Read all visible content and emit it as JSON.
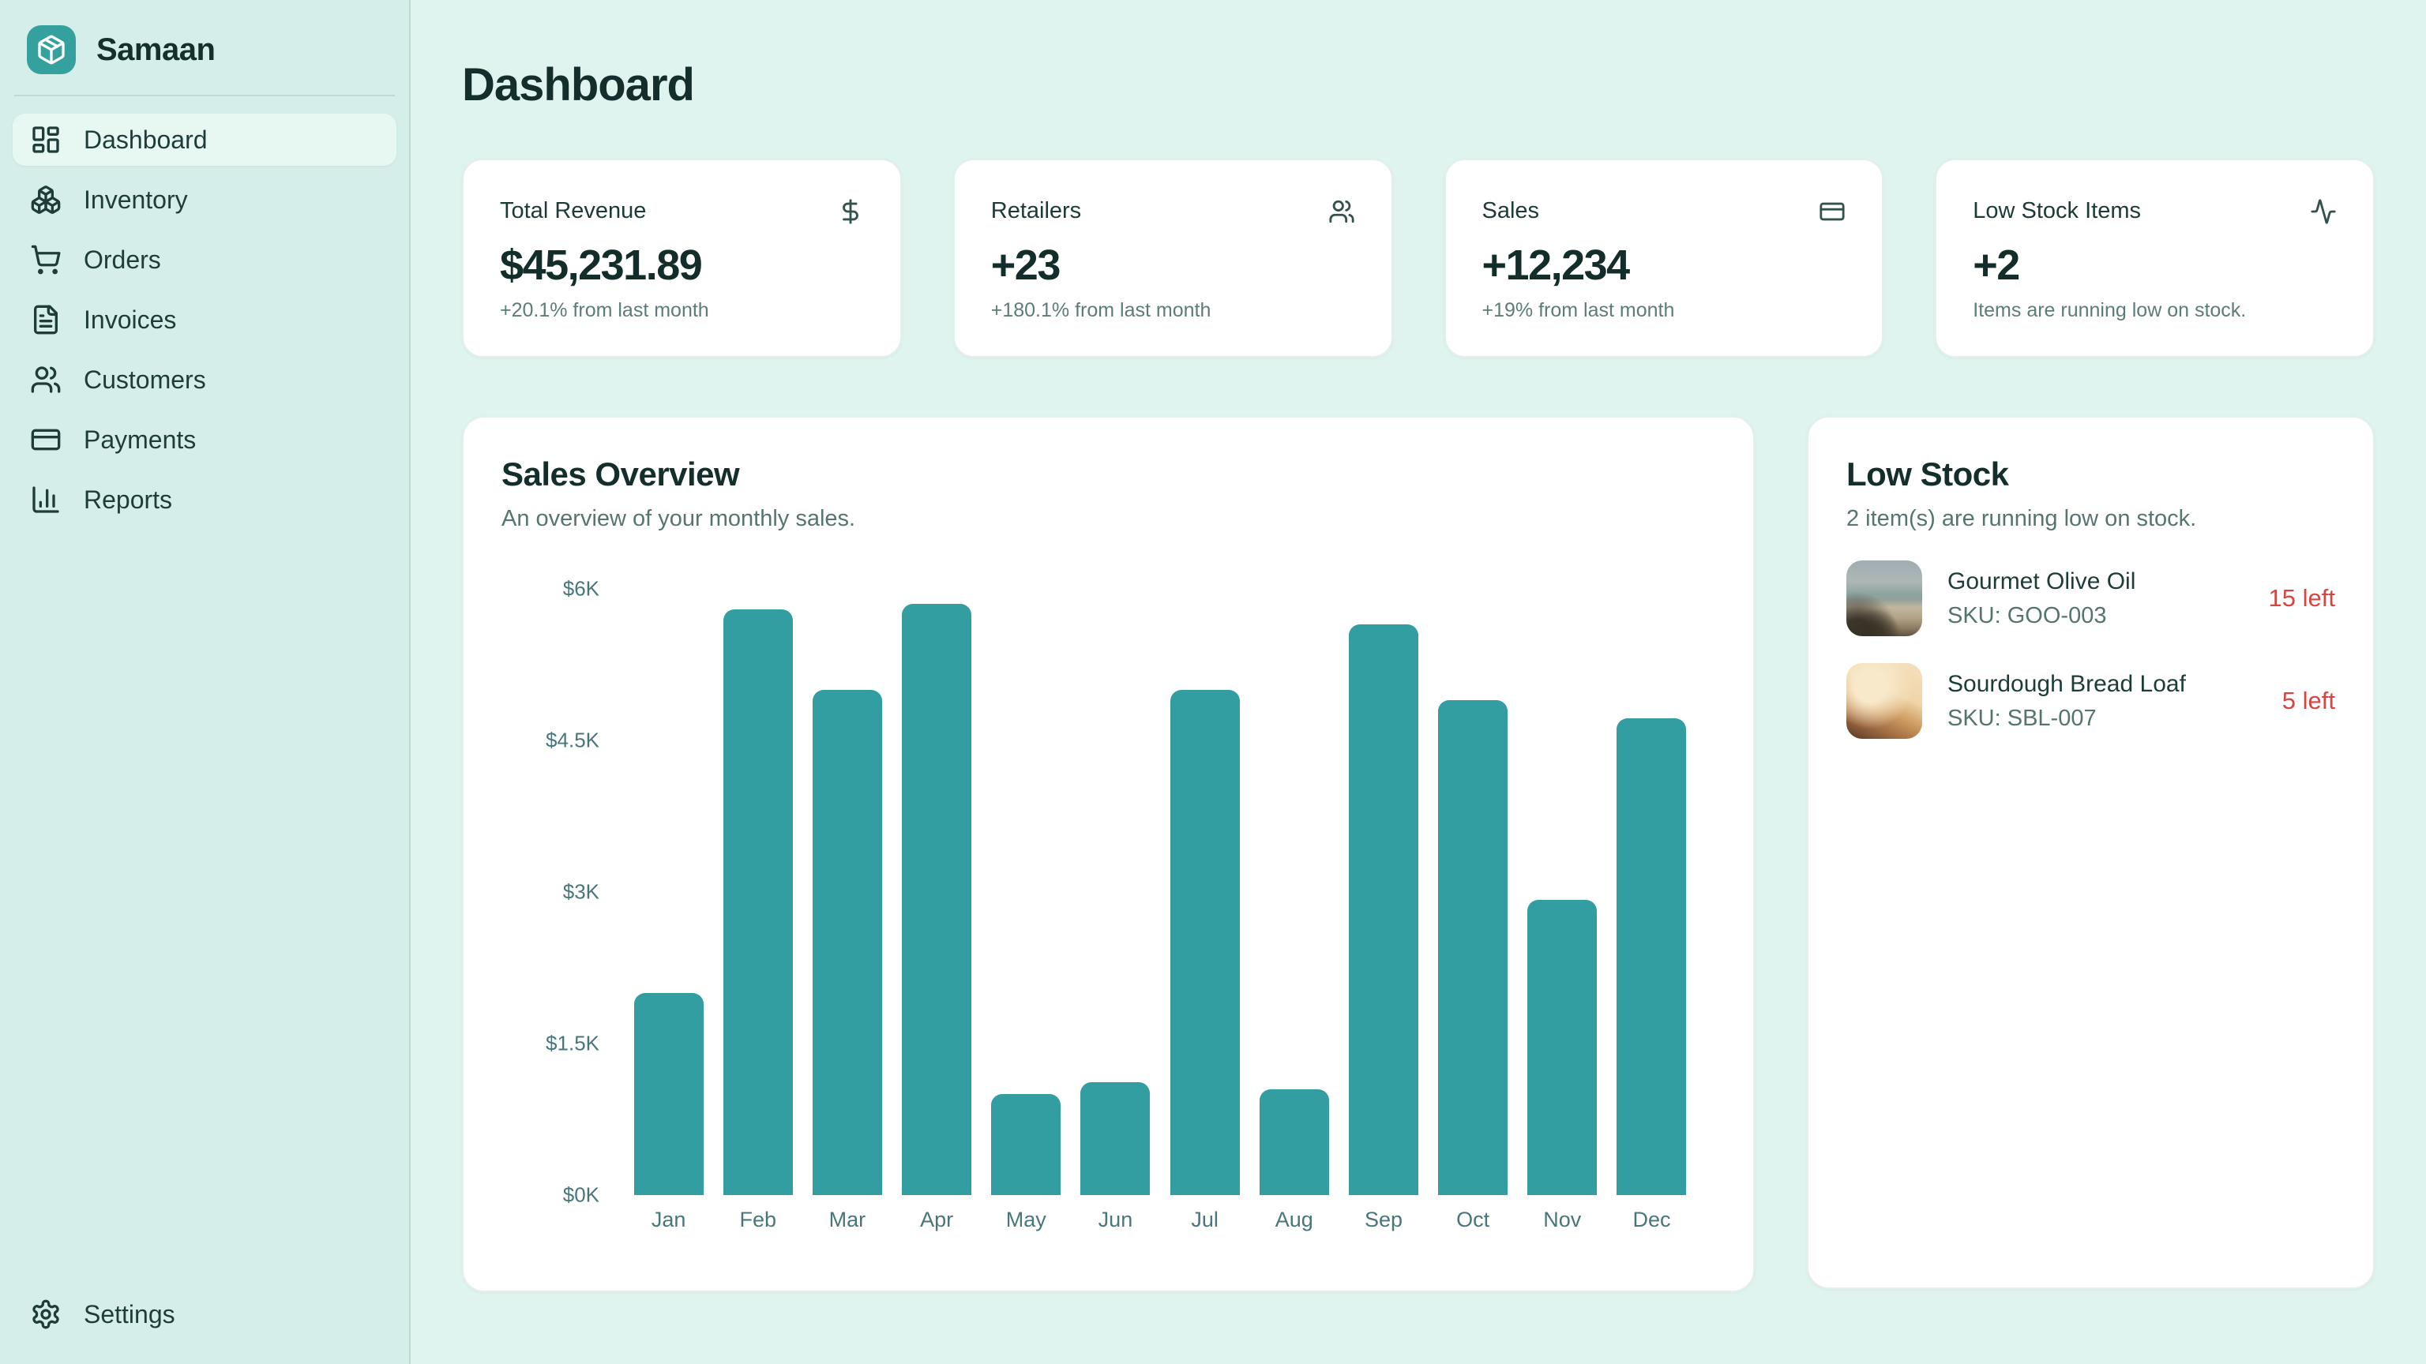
{
  "brand": {
    "name": "Samaan"
  },
  "sidebar": {
    "items": [
      {
        "label": "Dashboard",
        "icon": "dashboard-icon",
        "active": true
      },
      {
        "label": "Inventory",
        "icon": "boxes-icon",
        "active": false
      },
      {
        "label": "Orders",
        "icon": "shopping-cart-icon",
        "active": false
      },
      {
        "label": "Invoices",
        "icon": "file-text-icon",
        "active": false
      },
      {
        "label": "Customers",
        "icon": "users-icon",
        "active": false
      },
      {
        "label": "Payments",
        "icon": "credit-card-icon",
        "active": false
      },
      {
        "label": "Reports",
        "icon": "bar-chart-icon",
        "active": false
      }
    ],
    "settings": {
      "label": "Settings",
      "icon": "gear-icon"
    }
  },
  "page": {
    "title": "Dashboard"
  },
  "stats": [
    {
      "title": "Total Revenue",
      "value": "$45,231.89",
      "sub": "+20.1% from last month",
      "icon": "dollar-icon"
    },
    {
      "title": "Retailers",
      "value": "+23",
      "sub": "+180.1% from last month",
      "icon": "users-icon"
    },
    {
      "title": "Sales",
      "value": "+12,234",
      "sub": "+19% from last month",
      "icon": "credit-card-icon"
    },
    {
      "title": "Low Stock Items",
      "value": "+2",
      "sub": "Items are running low on stock.",
      "icon": "activity-icon"
    }
  ],
  "sales_overview": {
    "title": "Sales Overview",
    "subtitle": "An overview of your monthly sales."
  },
  "chart_data": {
    "type": "bar",
    "title": "Sales Overview",
    "xlabel": "",
    "ylabel": "",
    "categories": [
      "Jan",
      "Feb",
      "Mar",
      "Apr",
      "May",
      "Jun",
      "Jul",
      "Aug",
      "Sep",
      "Oct",
      "Nov",
      "Dec"
    ],
    "values": [
      2000,
      5800,
      5000,
      5850,
      1000,
      1120,
      5000,
      1050,
      5650,
      4900,
      2920,
      4720
    ],
    "y_ticks": [
      "$6K",
      "$4.5K",
      "$3K",
      "$1.5K",
      "$0K"
    ],
    "ylim": [
      0,
      6000
    ],
    "grid": false,
    "legend": false,
    "bar_color": "#339ea2"
  },
  "low_stock": {
    "title": "Low Stock",
    "subtitle": "2 item(s) are running low on stock.",
    "items": [
      {
        "name": "Gourmet Olive Oil",
        "sku": "SKU: GOO-003",
        "left": "15 left",
        "thumb": "olive-oil-photo"
      },
      {
        "name": "Sourdough Bread Loaf",
        "sku": "SKU: SBL-007",
        "left": "5 left",
        "thumb": "bread-photo"
      }
    ]
  },
  "colors": {
    "accent": "#35a19e",
    "bar": "#339ea2",
    "sidebar_bg": "#d5eee9",
    "main_bg": "#e0f4ef",
    "danger": "#d64540",
    "text_dark": "#132e2b",
    "text_muted": "#5d7c78"
  }
}
